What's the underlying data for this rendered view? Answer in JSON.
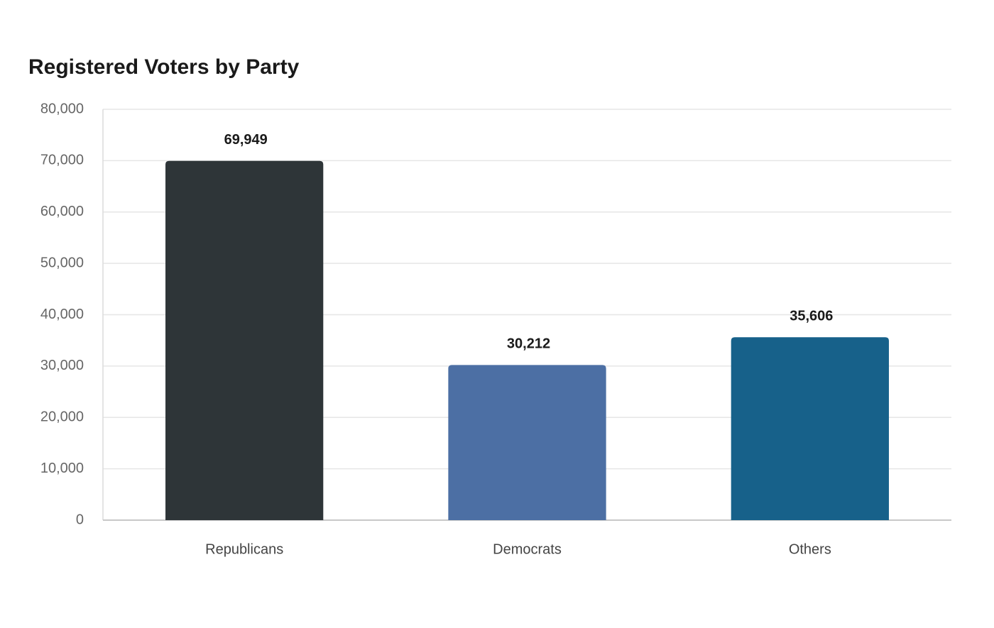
{
  "chart_data": {
    "type": "bar",
    "title": "Registered Voters by Party",
    "categories": [
      "Republicans",
      "Democrats",
      "Others"
    ],
    "values": [
      69949,
      30212,
      35606
    ],
    "value_labels": [
      "69,949",
      "30,212",
      "35,606"
    ],
    "colors": [
      "#2e3538",
      "#4c6fa4",
      "#17618a"
    ],
    "ylim": [
      0,
      80000
    ],
    "yticks": [
      0,
      {
        "value": 10000,
        "label": "10,000"
      },
      {
        "value": 20000,
        "label": "20,000"
      },
      {
        "value": 30000,
        "label": "30,000"
      },
      {
        "value": 40000,
        "label": "40,000"
      },
      {
        "value": 50000,
        "label": "50,000"
      },
      {
        "value": 60000,
        "label": "60,000"
      },
      {
        "value": 70000,
        "label": "70,000"
      },
      {
        "value": 80000,
        "label": "80,000"
      }
    ],
    "grid": true
  }
}
